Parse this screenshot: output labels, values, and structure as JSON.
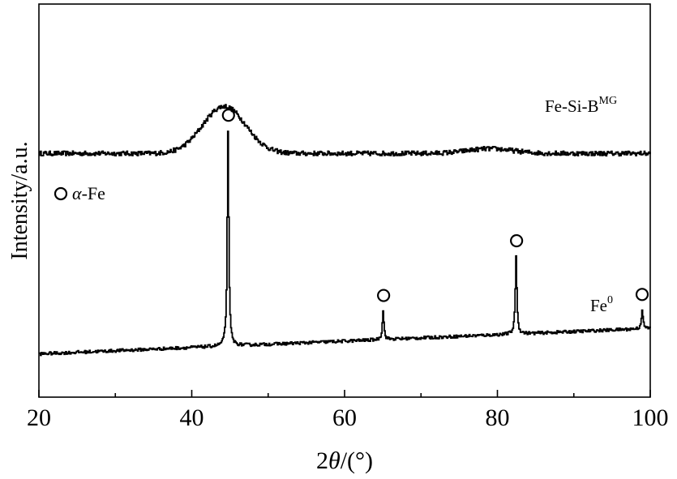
{
  "chart_data": {
    "type": "line",
    "xlabel": "2θ/(°)",
    "xlabel_parts": {
      "pre": "2",
      "italic": "θ",
      "post": "/(°)"
    },
    "ylabel": "Intensity/a.u.",
    "xlim": [
      20,
      100
    ],
    "ylim": [
      0,
      1
    ],
    "xticks": [
      20,
      40,
      60,
      80,
      100
    ],
    "xtick_labels": [
      "20",
      "40",
      "60",
      "80",
      "100"
    ],
    "y_ticks_visible": false,
    "grid": false,
    "legend": {
      "placement": "middle-left",
      "marker": "open-circle",
      "symbol": "α",
      "text": "-Fe"
    },
    "series": [
      {
        "name": "Fe-Si-B",
        "label_base": "Fe-Si-B",
        "label_sup": "MG",
        "color": "#000000",
        "baseline": 0.62,
        "noise": 0.006,
        "features": [
          {
            "type": "broad_hump",
            "center": 44.2,
            "height": 0.12,
            "width": 2.8
          },
          {
            "type": "broad_hump",
            "center": 79.0,
            "height": 0.012,
            "width": 3.0
          }
        ]
      },
      {
        "name": "Fe",
        "label_base": "Fe",
        "label_sup": "0",
        "color": "#000000",
        "baseline_start": 0.11,
        "baseline_end": 0.175,
        "noise": 0.004,
        "peaks": [
          {
            "x": 44.7,
            "height": 0.55,
            "marker": true
          },
          {
            "x": 65.0,
            "height": 0.075,
            "marker": true
          },
          {
            "x": 82.4,
            "height": 0.2,
            "marker": true
          },
          {
            "x": 98.9,
            "height": 0.05,
            "marker": true
          }
        ]
      }
    ]
  }
}
